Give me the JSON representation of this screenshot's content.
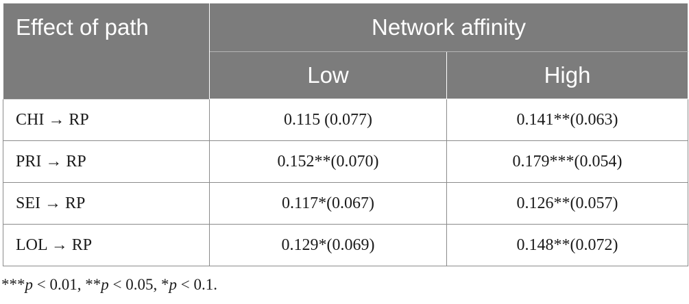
{
  "table": {
    "header": {
      "effect_label": "Effect of path",
      "group_label": "Network affinity",
      "low_label": "Low",
      "high_label": "High"
    },
    "rows": [
      {
        "path": "CHI → RP",
        "low": "0.115 (0.077)",
        "high": "0.141**(0.063)"
      },
      {
        "path": "PRI → RP",
        "low": "0.152**(0.070)",
        "high": "0.179***(0.054)"
      },
      {
        "path": "SEI → RP",
        "low": "0.117*(0.067)",
        "high": "0.126**(0.057)"
      },
      {
        "path": "LOL → RP",
        "low": "0.129*(0.069)",
        "high": "0.148**(0.072)"
      }
    ]
  },
  "footnote": {
    "s1_stars": "***",
    "s1_p": "p",
    "s1_rest": " < 0.01, ",
    "s2_stars": "**",
    "s2_p": "p",
    "s2_rest": " < 0.05, ",
    "s3_stars": "*",
    "s3_p": "p",
    "s3_rest": " < 0.1."
  },
  "colors": {
    "header_bg": "#7c7c7c",
    "header_text": "#ffffff",
    "border": "#8a8a8a"
  }
}
